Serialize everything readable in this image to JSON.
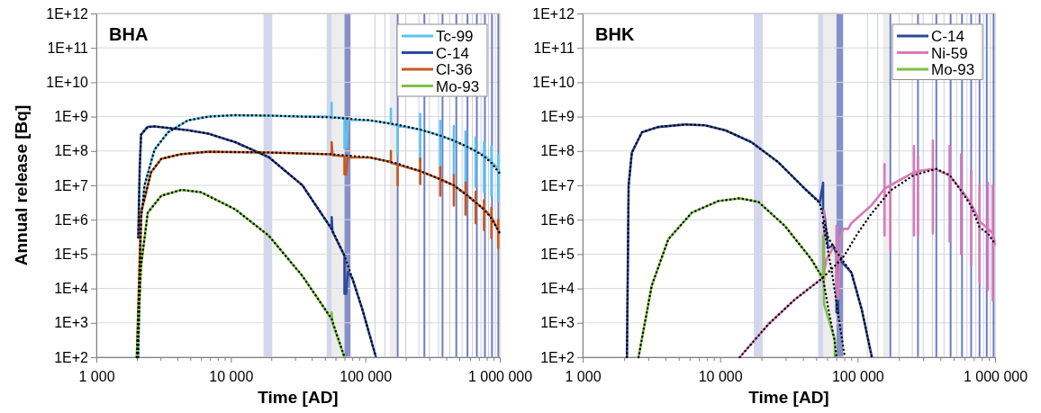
{
  "chart_data": [
    {
      "type": "line",
      "title": "BHA",
      "xlabel": "Time [AD]",
      "ylabel": "Annual release [Bq]",
      "log": "xy",
      "grid": "y",
      "legend": "top right",
      "marker": "none",
      "line_style": "solid",
      "xlim": [
        1000,
        1000000
      ],
      "ylim": [
        100,
        1000000000000
      ],
      "xticks": [
        {
          "value": 1000,
          "label": "1 000"
        },
        {
          "value": 2000,
          "label": null
        },
        {
          "value": 3000,
          "label": null
        },
        {
          "value": 4000,
          "label": null
        },
        {
          "value": 5000,
          "label": null
        },
        {
          "value": 6000,
          "label": null
        },
        {
          "value": 7000,
          "label": null
        },
        {
          "value": 8000,
          "label": null
        },
        {
          "value": 9000,
          "label": null
        },
        {
          "value": 10000,
          "label": "10 000"
        },
        {
          "value": 20000,
          "label": null
        },
        {
          "value": 30000,
          "label": null
        },
        {
          "value": 40000,
          "label": null
        },
        {
          "value": 50000,
          "label": null
        },
        {
          "value": 60000,
          "label": null
        },
        {
          "value": 70000,
          "label": null
        },
        {
          "value": 80000,
          "label": null
        },
        {
          "value": 90000,
          "label": null
        },
        {
          "value": 100000,
          "label": "100 000"
        },
        {
          "value": 200000,
          "label": null
        },
        {
          "value": 300000,
          "label": null
        },
        {
          "value": 400000,
          "label": null
        },
        {
          "value": 500000,
          "label": null
        },
        {
          "value": 600000,
          "label": null
        },
        {
          "value": 700000,
          "label": null
        },
        {
          "value": 800000,
          "label": null
        },
        {
          "value": 900000,
          "label": null
        },
        {
          "value": 1000000,
          "label": "1 000 000"
        }
      ],
      "yticks": [
        {
          "value": 100,
          "label": "1E+2"
        },
        {
          "value": 1000,
          "label": "1E+3"
        },
        {
          "value": 10000,
          "label": "1E+4"
        },
        {
          "value": 100000,
          "label": "1E+5"
        },
        {
          "value": 1000000,
          "label": "1E+6"
        },
        {
          "value": 10000000,
          "label": "1E+7"
        },
        {
          "value": 100000000,
          "label": "1E+8"
        },
        {
          "value": 1000000000,
          "label": "1E+9"
        },
        {
          "value": 10000000000,
          "label": "1E+10"
        },
        {
          "value": 100000000000,
          "label": "1E+11"
        },
        {
          "value": 1000000000000,
          "label": "1E+12"
        }
      ],
      "bands": [
        {
          "axis": "x",
          "from": 17500,
          "to": 20300,
          "color": "#d3d6ec"
        },
        {
          "axis": "x",
          "from": 51600,
          "to": 56500,
          "color": "#d3d6ec"
        },
        {
          "axis": "x",
          "from": 56500,
          "to": 70000,
          "color": "#ededed"
        },
        {
          "axis": "x",
          "from": 70000,
          "to": 77600,
          "color": "#8590c9"
        },
        {
          "axis": "x",
          "from": 152000,
          "to": 171000,
          "color": "#ededed"
        }
      ],
      "ref_lines": [
        {
          "axis": "x",
          "value": 118000,
          "color": "#c9cdea"
        },
        {
          "axis": "x",
          "value": 140000,
          "color": "#c9cdea"
        },
        {
          "axis": "x",
          "value": 200000,
          "color": "#c9cdea"
        },
        {
          "axis": "x",
          "value": 250000,
          "color": "#c9cdea"
        },
        {
          "axis": "x",
          "value": 300000,
          "color": "#c9cdea"
        },
        {
          "axis": "x",
          "value": 350000,
          "color": "#c9cdea"
        },
        {
          "axis": "x",
          "value": 425000,
          "color": "#c9cdea"
        },
        {
          "axis": "x",
          "value": 525000,
          "color": "#c9cdea"
        },
        {
          "axis": "x",
          "value": 625000,
          "color": "#c9cdea"
        },
        {
          "axis": "x",
          "value": 725000,
          "color": "#c9cdea"
        },
        {
          "axis": "x",
          "value": 825000,
          "color": "#c9cdea"
        },
        {
          "axis": "x",
          "value": 925000,
          "color": "#c9cdea"
        },
        {
          "axis": "x",
          "value": 174000,
          "color": "#6f7cc2"
        },
        {
          "axis": "x",
          "value": 275000,
          "color": "#6f7cc2"
        },
        {
          "axis": "x",
          "value": 375000,
          "color": "#6f7cc2"
        },
        {
          "axis": "x",
          "value": 475000,
          "color": "#6f7cc2"
        },
        {
          "axis": "x",
          "value": 575000,
          "color": "#6f7cc2"
        },
        {
          "axis": "x",
          "value": 675000,
          "color": "#6f7cc2"
        },
        {
          "axis": "x",
          "value": 775000,
          "color": "#6f7cc2"
        },
        {
          "axis": "x",
          "value": 875000,
          "color": "#6f7cc2"
        },
        {
          "axis": "x",
          "value": 975000,
          "color": "#6f7cc2"
        }
      ],
      "series": [
        {
          "name": "Tc-99",
          "color": "#5bc4ef",
          "x": [
            2050,
            2150,
            2280,
            2710,
            3410,
            4810,
            6800,
            10800,
            19200,
            34100,
            56200,
            56200,
            56200,
            60000,
            70000,
            70000,
            72000,
            74000,
            108000,
            155000,
            155000,
            155000,
            174000,
            174000,
            174000,
            256000,
            256000,
            256000,
            256000,
            361000,
            361000,
            361000,
            361000,
            455000,
            455000,
            455000,
            455000,
            556000,
            556000,
            556000,
            556000,
            661000,
            661000,
            661000,
            661000,
            763000,
            763000,
            763000,
            763000,
            866000,
            866000,
            866000,
            866000,
            972000,
            972000,
            972000,
            972000,
            1000000
          ],
          "values": [
            100,
            1000000.0,
            10000000.0,
            110000000.0,
            350000000.0,
            780000000.0,
            1000000000.0,
            1100000000.0,
            1070000000.0,
            1000000000.0,
            1000000000.0,
            2500000000.0,
            900000000.0,
            950000000.0,
            900000000.0,
            120000000.0,
            130000000.0,
            800000000.0,
            780000000.0,
            620000000.0,
            1700000000.0,
            600000000.0,
            550000000.0,
            80000000.0,
            550000000.0,
            420000000.0,
            1200000000.0,
            50000000.0,
            420000000.0,
            280000000.0,
            750000000.0,
            32000000.0,
            280000000.0,
            200000000.0,
            530000000.0,
            20000000.0,
            200000000.0,
            140000000.0,
            370000000.0,
            12000000.0,
            140000000.0,
            100000000.0,
            250000000.0,
            9000000.0,
            100000000.0,
            75000000.0,
            180000000.0,
            6500000.0,
            75000000.0,
            50000000.0,
            140000000.0,
            5000000.0,
            50000000.0,
            30000000.0,
            80000000.0,
            3500000.0,
            30000000.0,
            22000000.0
          ]
        },
        {
          "name": "C-14",
          "color": "#2b4a9c",
          "x": [
            2050,
            2100,
            2150,
            2400,
            2710,
            4810,
            6800,
            10800,
            19200,
            34100,
            56200,
            56200,
            57000,
            70000,
            70000,
            72000,
            74000,
            80000,
            95000,
            120000
          ],
          "values": [
            300000.0,
            30000000.0,
            300000000.0,
            500000000.0,
            520000000.0,
            400000000.0,
            320000000.0,
            180000000.0,
            66000000.0,
            10000000.0,
            540000.0,
            1200000.0,
            450000.0,
            90000.0,
            7000.0,
            7000.0,
            30000.0,
            20000.0,
            2500.0,
            100
          ]
        },
        {
          "name": "Cl-36",
          "color": "#c65a1e",
          "x": [
            2000,
            2150,
            2550,
            3040,
            4200,
            6800,
            19200,
            56200,
            56200,
            57000,
            70000,
            70000,
            72000,
            74000,
            108000,
            155000,
            155000,
            155000,
            174000,
            174000,
            174000,
            256000,
            256000,
            256000,
            256000,
            361000,
            361000,
            361000,
            361000,
            455000,
            455000,
            455000,
            455000,
            556000,
            556000,
            556000,
            556000,
            661000,
            661000,
            661000,
            661000,
            763000,
            763000,
            763000,
            763000,
            866000,
            866000,
            866000,
            866000,
            972000,
            972000,
            972000,
            972000,
            1000000
          ],
          "values": [
            100,
            1600000.0,
            24000000.0,
            59000000.0,
            80000000.0,
            95000000.0,
            90000000.0,
            80000000.0,
            180000000.0,
            75000000.0,
            70000000.0,
            21000000.0,
            21000000.0,
            65000000.0,
            65000000.0,
            48000000.0,
            100000000.0,
            45000000.0,
            40000000.0,
            10000000.0,
            40000000.0,
            26000000.0,
            60000000.0,
            11000000.0,
            26000000.0,
            15000000.0,
            34000000.0,
            5000000.0,
            15000000.0,
            10000000.0,
            20000000.0,
            2600000.0,
            10000000.0,
            5600000.0,
            12000000.0,
            1400000.0,
            5600000.0,
            3200000.0,
            6500000.0,
            800000.0,
            3200000.0,
            2000000.0,
            3700000.0,
            500000.0,
            2000000.0,
            1200000.0,
            2200000.0,
            300000.0,
            1200000.0,
            500000.0,
            1000000.0,
            150000.0,
            500000.0,
            400000.0
          ]
        },
        {
          "name": "Mo-93",
          "color": "#7dc242",
          "x": [
            2000,
            2150,
            2410,
            3040,
            4290,
            6000,
            10800,
            19200,
            34100,
            56200,
            56200,
            57000,
            70000
          ],
          "values": [
            100,
            46000.0,
            1600000.0,
            5000000.0,
            7400000.0,
            6300000.0,
            2000000.0,
            340000.0,
            23000.0,
            1300.0,
            2000.0,
            1000.0,
            100
          ]
        },
        {
          "color": "#000000",
          "line_style": "dotted",
          "x": [
            2050,
            2150,
            2280,
            2710,
            3410,
            4810,
            6800,
            10800,
            19200,
            34100,
            56200,
            108000,
            174000,
            256000,
            361000,
            455000,
            556000,
            661000,
            763000,
            866000,
            1000000
          ],
          "values": [
            100,
            1000000.0,
            10000000.0,
            110000000.0,
            350000000.0,
            780000000.0,
            1000000000.0,
            1100000000.0,
            1070000000.0,
            1000000000.0,
            950000000.0,
            780000000.0,
            580000000.0,
            420000000.0,
            280000000.0,
            200000000.0,
            140000000.0,
            100000000.0,
            70000000.0,
            45000000.0,
            22000000.0
          ]
        },
        {
          "color": "#000000",
          "line_style": "dotted",
          "x": [
            2050,
            2100,
            2150,
            2400,
            2710,
            4810,
            6800,
            10800,
            19200,
            34100,
            56200,
            70000,
            80000,
            95000,
            120000
          ],
          "values": [
            300000.0,
            30000000.0,
            300000000.0,
            500000000.0,
            520000000.0,
            400000000.0,
            320000000.0,
            180000000.0,
            66000000.0,
            10000000.0,
            540000.0,
            90000.0,
            20000.0,
            2500.0,
            100
          ]
        },
        {
          "color": "#000000",
          "line_style": "dotted",
          "x": [
            2000,
            2150,
            2550,
            3040,
            4200,
            6800,
            19200,
            56200,
            108000,
            174000,
            256000,
            361000,
            455000,
            556000,
            661000,
            763000,
            866000,
            1000000
          ],
          "values": [
            100,
            1600000.0,
            24000000.0,
            59000000.0,
            80000000.0,
            95000000.0,
            90000000.0,
            80000000.0,
            65000000.0,
            43000000.0,
            26000000.0,
            15000000.0,
            10000000.0,
            5600000.0,
            3200000.0,
            2000000.0,
            1100000.0,
            400000.0
          ]
        },
        {
          "color": "#000000",
          "line_style": "dotted",
          "x": [
            2000,
            2150,
            2410,
            3040,
            4290,
            6000,
            10800,
            19200,
            34100,
            56200,
            70000
          ],
          "values": [
            100,
            46000.0,
            1600000.0,
            5000000.0,
            7400000.0,
            6300000.0,
            2000000.0,
            340000.0,
            23000.0,
            1300.0,
            100
          ]
        }
      ]
    },
    {
      "type": "line",
      "title": "BHK",
      "xlabel": "Time [AD]",
      "log": "xy",
      "grid": "y",
      "legend": "top right",
      "marker": "none",
      "line_style": "solid",
      "xlim": [
        1000,
        1000000
      ],
      "ylim": [
        100,
        1000000000000
      ],
      "xticks": [
        {
          "value": 1000,
          "label": "1 000"
        },
        {
          "value": 2000,
          "label": null
        },
        {
          "value": 3000,
          "label": null
        },
        {
          "value": 4000,
          "label": null
        },
        {
          "value": 5000,
          "label": null
        },
        {
          "value": 6000,
          "label": null
        },
        {
          "value": 7000,
          "label": null
        },
        {
          "value": 8000,
          "label": null
        },
        {
          "value": 9000,
          "label": null
        },
        {
          "value": 10000,
          "label": "10 000"
        },
        {
          "value": 20000,
          "label": null
        },
        {
          "value": 30000,
          "label": null
        },
        {
          "value": 40000,
          "label": null
        },
        {
          "value": 50000,
          "label": null
        },
        {
          "value": 60000,
          "label": null
        },
        {
          "value": 70000,
          "label": null
        },
        {
          "value": 80000,
          "label": null
        },
        {
          "value": 90000,
          "label": null
        },
        {
          "value": 100000,
          "label": "100 000"
        },
        {
          "value": 200000,
          "label": null
        },
        {
          "value": 300000,
          "label": null
        },
        {
          "value": 400000,
          "label": null
        },
        {
          "value": 500000,
          "label": null
        },
        {
          "value": 600000,
          "label": null
        },
        {
          "value": 700000,
          "label": null
        },
        {
          "value": 800000,
          "label": null
        },
        {
          "value": 900000,
          "label": null
        },
        {
          "value": 1000000,
          "label": "1 000 000"
        }
      ],
      "yticks": [
        {
          "value": 100,
          "label": "1E+2"
        },
        {
          "value": 1000,
          "label": "1E+3"
        },
        {
          "value": 10000,
          "label": "1E+4"
        },
        {
          "value": 100000,
          "label": "1E+5"
        },
        {
          "value": 1000000,
          "label": "1E+6"
        },
        {
          "value": 10000000,
          "label": "1E+7"
        },
        {
          "value": 100000000,
          "label": "1E+8"
        },
        {
          "value": 1000000000,
          "label": "1E+9"
        },
        {
          "value": 10000000000,
          "label": "1E+10"
        },
        {
          "value": 100000000000,
          "label": "1E+11"
        },
        {
          "value": 1000000000000,
          "label": "1E+12"
        }
      ],
      "bands": [
        {
          "axis": "x",
          "from": 17600,
          "to": 20400,
          "color": "#d3d6ec"
        },
        {
          "axis": "x",
          "from": 51700,
          "to": 56500,
          "color": "#d3d6ec"
        },
        {
          "axis": "x",
          "from": 56500,
          "to": 70200,
          "color": "#ededed"
        },
        {
          "axis": "x",
          "from": 70200,
          "to": 78500,
          "color": "#8590c9"
        },
        {
          "axis": "x",
          "from": 153000,
          "to": 168000,
          "color": "#ededed"
        }
      ],
      "ref_lines": [
        {
          "axis": "x",
          "value": 118000,
          "color": "#c9cdea"
        },
        {
          "axis": "x",
          "value": 140000,
          "color": "#c9cdea"
        },
        {
          "axis": "x",
          "value": 200000,
          "color": "#c9cdea"
        },
        {
          "axis": "x",
          "value": 250000,
          "color": "#c9cdea"
        },
        {
          "axis": "x",
          "value": 300000,
          "color": "#c9cdea"
        },
        {
          "axis": "x",
          "value": 350000,
          "color": "#c9cdea"
        },
        {
          "axis": "x",
          "value": 425000,
          "color": "#c9cdea"
        },
        {
          "axis": "x",
          "value": 525000,
          "color": "#c9cdea"
        },
        {
          "axis": "x",
          "value": 625000,
          "color": "#c9cdea"
        },
        {
          "axis": "x",
          "value": 725000,
          "color": "#c9cdea"
        },
        {
          "axis": "x",
          "value": 825000,
          "color": "#c9cdea"
        },
        {
          "axis": "x",
          "value": 925000,
          "color": "#c9cdea"
        },
        {
          "axis": "x",
          "value": 173000,
          "color": "#6f7cc2"
        },
        {
          "axis": "x",
          "value": 275000,
          "color": "#6f7cc2"
        },
        {
          "axis": "x",
          "value": 374000,
          "color": "#6f7cc2"
        },
        {
          "axis": "x",
          "value": 475000,
          "color": "#6f7cc2"
        },
        {
          "axis": "x",
          "value": 575000,
          "color": "#6f7cc2"
        },
        {
          "axis": "x",
          "value": 670000,
          "color": "#6f7cc2"
        },
        {
          "axis": "x",
          "value": 771000,
          "color": "#6f7cc2"
        },
        {
          "axis": "x",
          "value": 870000,
          "color": "#6f7cc2"
        },
        {
          "axis": "x",
          "value": 975000,
          "color": "#6f7cc2"
        }
      ],
      "series": [
        {
          "name": "C-14",
          "color": "#2b4a9c",
          "x": [
            2100,
            2160,
            2280,
            2700,
            3560,
            5560,
            7770,
            10900,
            16900,
            26500,
            41300,
            53100,
            56100,
            56100,
            57700,
            61100,
            66300,
            70200,
            70200,
            72100,
            72100,
            76300,
            90200,
            107000,
            127000
          ],
          "values": [
            100,
            10000000.0,
            90000000.0,
            350000000.0,
            500000000.0,
            590000000.0,
            560000000.0,
            400000000.0,
            180000000.0,
            47000000.0,
            8000000.0,
            3200000.0,
            12000000.0,
            2000000.0,
            1200000.0,
            150000.0,
            180000.0,
            100000.0,
            2000.0,
            2000.0,
            60000.0,
            60000.0,
            29000.0,
            2500.0,
            100
          ]
        },
        {
          "name": "Ni-59",
          "color": "#d77bb7",
          "x": [
            13900,
            22400,
            35000,
            54600,
            57100,
            57100,
            57100,
            59400,
            66300,
            70200,
            70200,
            70200,
            72100,
            75000,
            78500,
            85400,
            90200,
            126000,
            157000,
            157000,
            157000,
            157000,
            173000,
            173000,
            173000,
            257000,
            257000,
            257000,
            257000,
            275000,
            275000,
            275000,
            275000,
            353000,
            353000,
            353000,
            353000,
            374000,
            467000,
            467000,
            467000,
            467000,
            566000,
            566000,
            566000,
            566000,
            670000,
            670000,
            670000,
            670000,
            771000,
            771000,
            771000,
            771000,
            886000,
            886000,
            886000,
            886000,
            962000,
            962000,
            962000,
            962000,
            1000000
          ],
          "values": [
            100,
            900,
            4800.0,
            19000.0,
            19000.0,
            1800000.0,
            30000.0,
            70000.0,
            150000.0,
            150000.0,
            660000.0,
            5000.0,
            5000.0,
            300000.0,
            540000.0,
            540000.0,
            800000.0,
            2600000.0,
            8000000.0,
            42000000.0,
            350000.0,
            8000000.0,
            10000000.0,
            130000.0,
            10000000.0,
            24000000.0,
            140000000.0,
            350000.0,
            24000000.0,
            26000000.0,
            70000000.0,
            350000.0,
            26000000.0,
            30000000.0,
            200000000.0,
            400000.0,
            30000000.0,
            29000000.0,
            19000000.0,
            140000000.0,
            230000.0,
            19000000.0,
            7500000.0,
            80000000.0,
            100000.0,
            7500000.0,
            3000000.0,
            26000000.0,
            50000.0,
            3000000.0,
            900000.0,
            10000000.0,
            15000.0,
            900000.0,
            550000.0,
            12000000.0,
            9000.0,
            550000.0,
            400000.0,
            10000000.0,
            4500.0,
            400000.0,
            180000.0
          ]
        },
        {
          "name": "Mo-93",
          "color": "#7dc242",
          "x": [
            2550,
            3180,
            4200,
            6220,
            9700,
            13900,
            19000,
            29600,
            46200,
            56100,
            56100,
            57100,
            66000,
            68300,
            68300
          ],
          "values": [
            100,
            12000.0,
            270000.0,
            1600000.0,
            3500000.0,
            4200000.0,
            3300000.0,
            660000.0,
            70000.0,
            19000.0,
            340000.0,
            3500.0,
            500,
            330,
            100
          ]
        },
        {
          "color": "#000000",
          "line_style": "dotted",
          "x": [
            2100,
            2160,
            2280,
            2700,
            3560,
            5560,
            7770,
            10900,
            16900,
            26500,
            41300,
            53100,
            61100,
            70000,
            90200,
            107000,
            127000
          ],
          "values": [
            100,
            10000000.0,
            90000000.0,
            350000000.0,
            500000000.0,
            590000000.0,
            560000000.0,
            400000000.0,
            180000000.0,
            47000000.0,
            8000000.0,
            3000000.0,
            300000.0,
            120000.0,
            29000.0,
            2500.0,
            100
          ]
        },
        {
          "color": "#000000",
          "line_style": "dotted",
          "x": [
            56000,
            65000,
            72000,
            80700
          ],
          "values": [
            800000.0,
            30000.0,
            2000.0,
            100
          ]
        },
        {
          "color": "#000000",
          "line_style": "dotted",
          "x": [
            2550,
            3180,
            4200,
            6220,
            9700,
            13900,
            19000,
            29600,
            46200,
            56100,
            62000,
            68000,
            70200
          ],
          "values": [
            100,
            12000.0,
            270000.0,
            1600000.0,
            3500000.0,
            4200000.0,
            3300000.0,
            660000.0,
            70000.0,
            19000.0,
            2000.0,
            300,
            100
          ]
        },
        {
          "color": "#000000",
          "line_style": "dotted",
          "x": [
            13900,
            22400,
            35000,
            54600,
            70000,
            80000,
            100000,
            126000,
            173000,
            257000,
            374000,
            467000,
            566000,
            670000,
            771000,
            886000,
            1000000
          ],
          "values": [
            100,
            900,
            4800.0,
            19000.0,
            50000.0,
            90000.0,
            400000.0,
            1500000.0,
            7000000.0,
            20000000.0,
            30000000.0,
            20000000.0,
            7000000.0,
            2500000.0,
            600000.0,
            400000.0,
            200000.0
          ]
        }
      ]
    }
  ]
}
